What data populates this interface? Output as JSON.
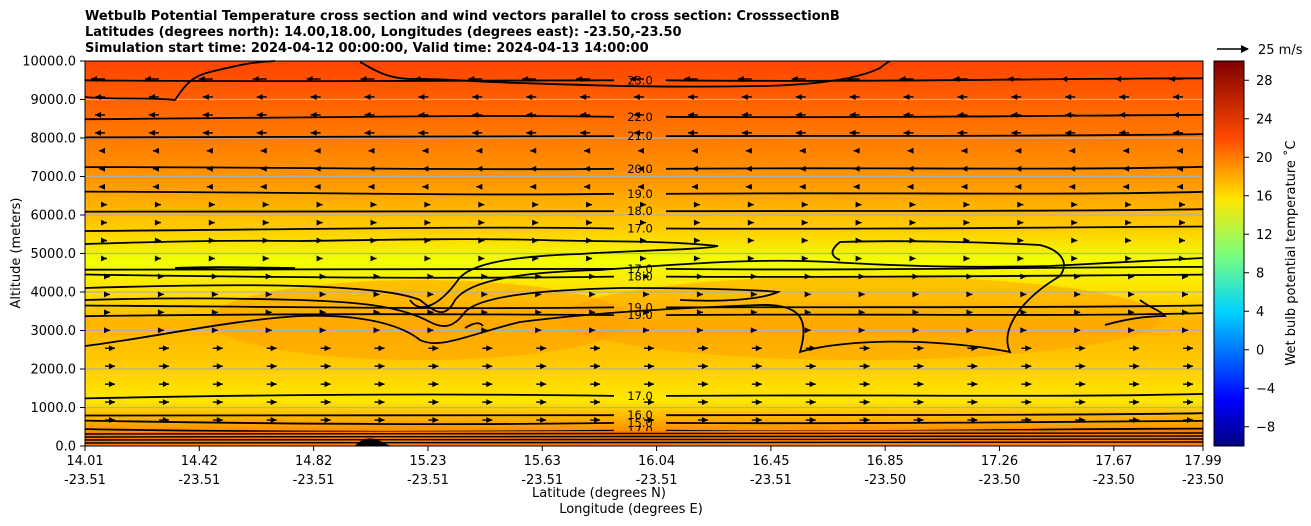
{
  "titles": [
    "Wetbulb Potential Temperature cross section and wind vectors parallel to cross section: CrosssectionB",
    "Latitudes (degrees north): 14.00,18.00, Longitudes (degrees east): -23.50,-23.50",
    "Simulation start time: 2024-04-12 00:00:00, Valid time: 2024-04-13 14:00:00"
  ],
  "colors": {
    "fill_top": "#ff4a00",
    "fill_bottom": "#ff9a00",
    "fill_mid": "#f2ff00",
    "contour": "#000000",
    "grid": "#b0b0b0"
  },
  "chart_data": {
    "type": "contour",
    "title": "Wetbulb Potential Temperature cross section and wind vectors parallel to cross section: CrosssectionB",
    "xlabel": "Latitude (degrees N)",
    "xlabel2": "Longitude (degrees E)",
    "ylabel": "Altitude (meters)",
    "ylim": [
      0,
      10000
    ],
    "yticks": [
      "0.0",
      "1000.0",
      "2000.0",
      "3000.0",
      "4000.0",
      "5000.0",
      "6000.0",
      "7000.0",
      "8000.0",
      "9000.0",
      "10000.0"
    ],
    "xticks": [
      {
        "lat": "14.01",
        "lon": "-23.51"
      },
      {
        "lat": "14.42",
        "lon": "-23.51"
      },
      {
        "lat": "14.82",
        "lon": "-23.51"
      },
      {
        "lat": "15.23",
        "lon": "-23.51"
      },
      {
        "lat": "15.63",
        "lon": "-23.51"
      },
      {
        "lat": "16.04",
        "lon": "-23.51"
      },
      {
        "lat": "16.45",
        "lon": "-23.51"
      },
      {
        "lat": "16.85",
        "lon": "-23.50"
      },
      {
        "lat": "17.26",
        "lon": "-23.50"
      },
      {
        "lat": "17.67",
        "lon": "-23.50"
      },
      {
        "lat": "17.99",
        "lon": "-23.50"
      }
    ],
    "contour_levels": [
      {
        "label": "23.0",
        "alt": 9500
      },
      {
        "label": "22.0",
        "alt": 8550
      },
      {
        "label": "21.0",
        "alt": 8050
      },
      {
        "label": "20.0",
        "alt": 7200
      },
      {
        "label": "19.0",
        "alt": 6550
      },
      {
        "label": "18.0",
        "alt": 6100
      },
      {
        "label": "17.0",
        "alt": 5650
      },
      {
        "label": "17.0",
        "alt": 4600
      },
      {
        "label": "18.0",
        "alt": 4400
      },
      {
        "label": "19.0",
        "alt": 3600
      },
      {
        "label": "19.0",
        "alt": 3400
      },
      {
        "label": "17.0",
        "alt": 1300
      },
      {
        "label": "16.0",
        "alt": 800
      },
      {
        "label": "15.0",
        "alt": 600
      },
      {
        "label": "17.0",
        "alt": 400
      }
    ],
    "colorbar": {
      "label": "Wet bulb potential temperature ˚C",
      "min": -10,
      "max": 30,
      "ticks": [
        "28",
        "24",
        "20",
        "16",
        "12",
        "8",
        "4",
        "0",
        "−4",
        "−8"
      ]
    },
    "wind_key": "25 m/s"
  }
}
